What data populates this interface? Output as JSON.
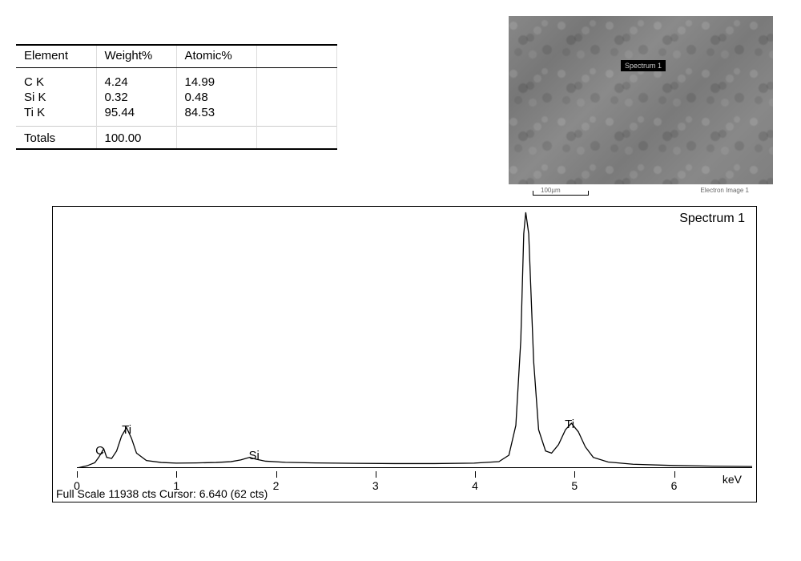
{
  "table": {
    "columns": [
      "Element",
      "Weight%",
      "Atomic%",
      ""
    ],
    "rows": [
      [
        "C K",
        "4.24",
        "14.99",
        ""
      ],
      [
        "Si K",
        "0.32",
        "0.48",
        ""
      ],
      [
        "Ti K",
        "95.44",
        "84.53",
        ""
      ]
    ],
    "totals_label": "Totals",
    "totals_value": "100.00",
    "font_size": 15,
    "border_color": "#000000",
    "cell_border_color": "#dddddd"
  },
  "sem": {
    "overlay_label": "Spectrum 1",
    "scale_label": "100µm",
    "caption_right": "Electron Image 1",
    "bg_color": "#808080"
  },
  "spectrum": {
    "title": "Spectrum 1",
    "x_unit": "keV",
    "footer": "Full Scale 11938 cts Cursor: 6.640  (62 cts)",
    "xlim": [
      0,
      6.8
    ],
    "x_ticks": [
      0,
      1,
      2,
      3,
      4,
      5,
      6
    ],
    "y_max": 12000,
    "line_color": "#000000",
    "line_width": 1.3,
    "background_color": "#ffffff",
    "peak_labels": [
      {
        "text": "C",
        "x_keV": 0.23,
        "y_ratio": 0.9
      },
      {
        "text": "Ti",
        "x_keV": 0.5,
        "y_ratio": 0.82
      },
      {
        "text": "Si",
        "x_keV": 1.78,
        "y_ratio": 0.92
      },
      {
        "text": "Ti",
        "x_keV": 4.95,
        "y_ratio": 0.8
      }
    ],
    "points": [
      [
        0.0,
        0
      ],
      [
        0.1,
        100
      ],
      [
        0.18,
        250
      ],
      [
        0.22,
        500
      ],
      [
        0.27,
        900
      ],
      [
        0.3,
        500
      ],
      [
        0.35,
        450
      ],
      [
        0.4,
        800
      ],
      [
        0.45,
        1500
      ],
      [
        0.5,
        1900
      ],
      [
        0.55,
        1400
      ],
      [
        0.6,
        700
      ],
      [
        0.7,
        350
      ],
      [
        0.85,
        260
      ],
      [
        1.0,
        230
      ],
      [
        1.2,
        240
      ],
      [
        1.4,
        260
      ],
      [
        1.55,
        300
      ],
      [
        1.65,
        380
      ],
      [
        1.74,
        500
      ],
      [
        1.8,
        420
      ],
      [
        1.9,
        320
      ],
      [
        2.1,
        270
      ],
      [
        2.4,
        240
      ],
      [
        2.8,
        220
      ],
      [
        3.2,
        210
      ],
      [
        3.6,
        210
      ],
      [
        4.0,
        230
      ],
      [
        4.25,
        300
      ],
      [
        4.35,
        600
      ],
      [
        4.42,
        2000
      ],
      [
        4.47,
        6000
      ],
      [
        4.5,
        11000
      ],
      [
        4.52,
        13000
      ],
      [
        4.55,
        11000
      ],
      [
        4.6,
        5000
      ],
      [
        4.65,
        1800
      ],
      [
        4.72,
        800
      ],
      [
        4.78,
        700
      ],
      [
        4.85,
        1100
      ],
      [
        4.92,
        1800
      ],
      [
        4.98,
        2100
      ],
      [
        5.05,
        1700
      ],
      [
        5.12,
        1000
      ],
      [
        5.2,
        500
      ],
      [
        5.35,
        280
      ],
      [
        5.6,
        180
      ],
      [
        6.0,
        120
      ],
      [
        6.4,
        90
      ],
      [
        6.8,
        70
      ]
    ]
  }
}
